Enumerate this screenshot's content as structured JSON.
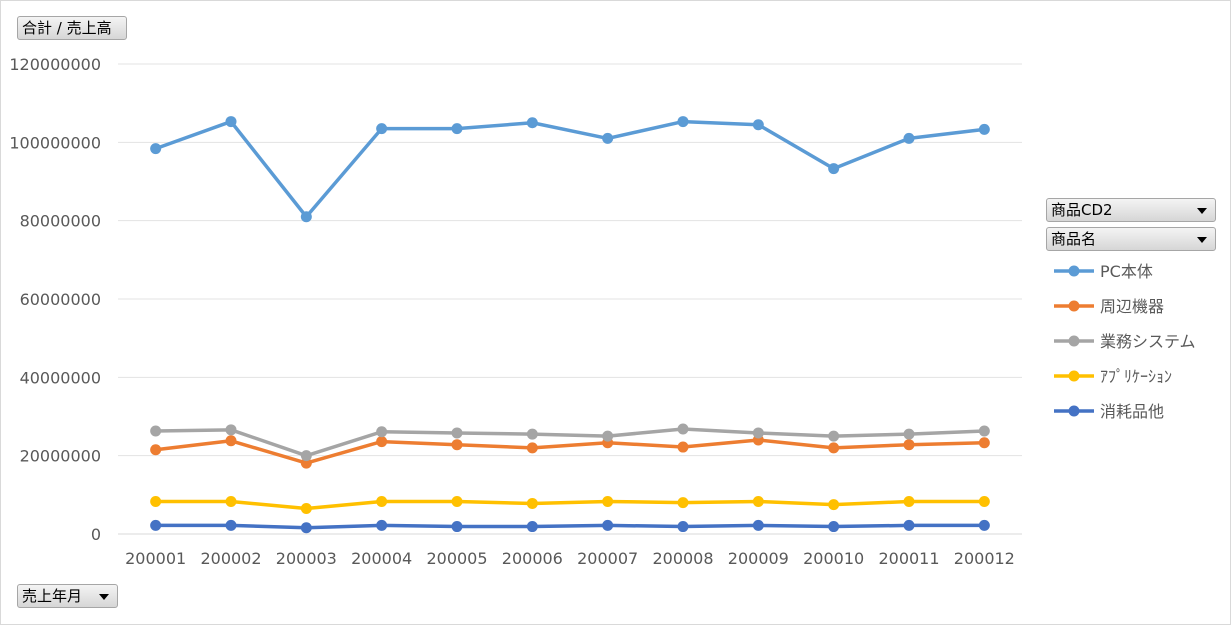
{
  "value_field": {
    "label": "合計 / 売上高"
  },
  "row_field": {
    "label": "売上年月"
  },
  "filters": [
    {
      "label": "商品CD2"
    },
    {
      "label": "商品名"
    }
  ],
  "colors": {
    "PC本体": "#5b9bd5",
    "周辺機器": "#ed7d31",
    "業務システム": "#a5a5a5",
    "ｱﾌﾟﾘｹｰｼｮﾝ": "#ffc000",
    "消耗品他": "#4472c4"
  },
  "chart_data": {
    "type": "line",
    "categories": [
      "200001",
      "200002",
      "200003",
      "200004",
      "200005",
      "200006",
      "200007",
      "200008",
      "200009",
      "200010",
      "200011",
      "200012"
    ],
    "ylim": [
      0,
      120000000
    ],
    "yticks": [
      "0",
      "20000000",
      "40000000",
      "60000000",
      "80000000",
      "100000000",
      "120000000"
    ],
    "grid": true,
    "legend_position": "right",
    "series": [
      {
        "name": "PC本体",
        "values": [
          98400000,
          105300000,
          81000000,
          103500000,
          103500000,
          105000000,
          101000000,
          105300000,
          104500000,
          93300000,
          101000000,
          103300000
        ]
      },
      {
        "name": "周辺機器",
        "values": [
          21500000,
          23800000,
          18100000,
          23600000,
          22800000,
          22000000,
          23300000,
          22200000,
          24000000,
          22000000,
          22800000,
          23300000
        ]
      },
      {
        "name": "業務システム",
        "values": [
          26300000,
          26600000,
          20000000,
          26100000,
          25800000,
          25500000,
          25000000,
          26800000,
          25800000,
          25000000,
          25500000,
          26300000
        ]
      },
      {
        "name": "ｱﾌﾟﾘｹｰｼｮﾝ",
        "values": [
          8300000,
          8300000,
          6500000,
          8300000,
          8300000,
          7800000,
          8300000,
          8000000,
          8300000,
          7500000,
          8300000,
          8300000
        ]
      },
      {
        "name": "消耗品他",
        "values": [
          2200000,
          2200000,
          1600000,
          2200000,
          1900000,
          1900000,
          2200000,
          1900000,
          2200000,
          1900000,
          2200000,
          2200000
        ]
      }
    ]
  }
}
